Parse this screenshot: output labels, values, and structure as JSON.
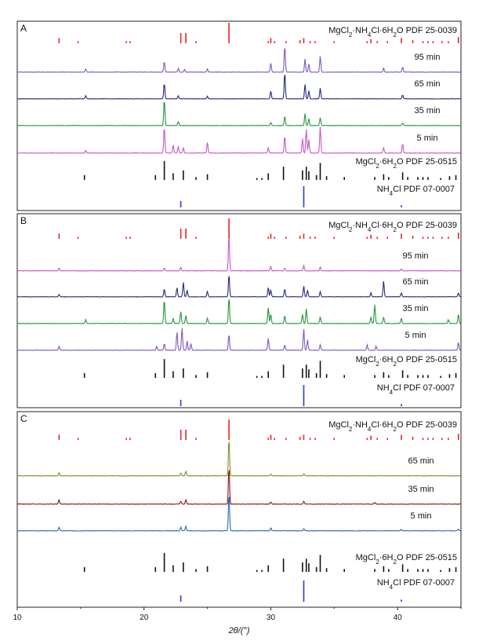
{
  "chart_data": {
    "type": "line",
    "xlabel": "2θ/(°)",
    "xlim": [
      10,
      45
    ],
    "x_ticks": [
      "10",
      "20",
      "30",
      "40"
    ],
    "x_tick_values": [
      10,
      20,
      30,
      40
    ],
    "colors": {
      "ref_mgnh4": "#e8232a",
      "ref_mgcl2": "#111111",
      "ref_nh4cl": "#2b3fc9",
      "purple": "#7e57c2",
      "navy": "#222a7a",
      "green": "#1e9a3c",
      "magenta": "#cc55c4",
      "olive": "#8a8a2a",
      "darkred": "#8b1414",
      "blue": "#2a6ab8"
    },
    "references": {
      "MgNH4": {
        "label": "MgCl2·NH4Cl·6H2O  PDF 25-0039",
        "peaks": [
          [
            13.3,
            0.25
          ],
          [
            14.8,
            0.1
          ],
          [
            18.6,
            0.1
          ],
          [
            18.9,
            0.1
          ],
          [
            22.9,
            0.5
          ],
          [
            23.3,
            0.5
          ],
          [
            24.1,
            0.1
          ],
          [
            26.7,
            1.0
          ],
          [
            29.8,
            0.1
          ],
          [
            30.0,
            0.25
          ],
          [
            30.3,
            0.1
          ],
          [
            31.2,
            0.1
          ],
          [
            32.3,
            0.15
          ],
          [
            32.6,
            0.25
          ],
          [
            33.1,
            0.1
          ],
          [
            33.5,
            0.1
          ],
          [
            35.0,
            0.1
          ],
          [
            37.6,
            0.1
          ],
          [
            37.9,
            0.2
          ],
          [
            38.4,
            0.1
          ],
          [
            39.2,
            0.1
          ],
          [
            40.3,
            0.25
          ],
          [
            41.2,
            0.15
          ],
          [
            42.0,
            0.1
          ],
          [
            42.4,
            0.1
          ],
          [
            42.8,
            0.1
          ],
          [
            43.5,
            0.1
          ],
          [
            44.0,
            0.1
          ],
          [
            44.8,
            0.3
          ]
        ]
      },
      "MgCl2": {
        "label": "MgCl2·6H2O  PDF 25-0515",
        "peaks": [
          [
            15.3,
            0.25
          ],
          [
            20.9,
            0.25
          ],
          [
            21.6,
            1.0
          ],
          [
            22.3,
            0.35
          ],
          [
            23.1,
            0.5
          ],
          [
            24.1,
            0.15
          ],
          [
            25.0,
            0.3
          ],
          [
            28.9,
            0.1
          ],
          [
            29.3,
            0.1
          ],
          [
            29.8,
            0.35
          ],
          [
            31.0,
            0.7
          ],
          [
            32.5,
            0.5
          ],
          [
            32.8,
            0.7
          ],
          [
            33.0,
            0.45
          ],
          [
            33.6,
            0.25
          ],
          [
            33.9,
            0.9
          ],
          [
            34.4,
            0.2
          ],
          [
            35.8,
            0.15
          ],
          [
            38.2,
            0.15
          ],
          [
            38.9,
            0.3
          ],
          [
            39.3,
            0.15
          ],
          [
            40.4,
            0.4
          ],
          [
            40.8,
            0.15
          ],
          [
            41.6,
            0.15
          ],
          [
            42.0,
            0.15
          ],
          [
            42.4,
            0.15
          ],
          [
            43.4,
            0.1
          ],
          [
            44.1,
            0.2
          ],
          [
            44.6,
            0.25
          ]
        ]
      },
      "NH4Cl": {
        "label": "NH4Cl  PDF 07-0007",
        "peaks": [
          [
            22.9,
            0.3
          ],
          [
            32.6,
            1.0
          ],
          [
            40.3,
            0.1
          ]
        ]
      }
    },
    "panels": [
      {
        "letter": "A",
        "patterns": [
          {
            "label": "95 min",
            "color": "purple",
            "peaks": [
              [
                15.4,
                0.12
              ],
              [
                21.6,
                0.4
              ],
              [
                22.7,
                0.15
              ],
              [
                23.2,
                0.1
              ],
              [
                25.0,
                0.12
              ],
              [
                30.0,
                0.35
              ],
              [
                31.1,
                1.0
              ],
              [
                32.7,
                0.5
              ],
              [
                33.0,
                0.3
              ],
              [
                33.9,
                0.6
              ],
              [
                38.9,
                0.15
              ],
              [
                40.4,
                0.2
              ]
            ]
          },
          {
            "label": "65 min",
            "color": "navy",
            "peaks": [
              [
                15.4,
                0.12
              ],
              [
                21.6,
                0.6
              ],
              [
                22.7,
                0.12
              ],
              [
                25.0,
                0.1
              ],
              [
                30.0,
                0.3
              ],
              [
                31.1,
                1.0
              ],
              [
                32.7,
                0.55
              ],
              [
                33.0,
                0.3
              ],
              [
                33.9,
                0.4
              ],
              [
                40.4,
                0.15
              ]
            ]
          },
          {
            "label": "35 min",
            "color": "green",
            "peaks": [
              [
                21.6,
                1.0
              ],
              [
                22.7,
                0.15
              ],
              [
                30.0,
                0.12
              ],
              [
                31.1,
                0.35
              ],
              [
                32.7,
                0.45
              ],
              [
                33.0,
                0.25
              ],
              [
                33.9,
                0.3
              ],
              [
                40.4,
                0.1
              ]
            ]
          },
          {
            "label": "5 min",
            "color": "magenta",
            "peaks": [
              [
                15.4,
                0.1
              ],
              [
                21.6,
                1.0
              ],
              [
                22.3,
                0.3
              ],
              [
                22.7,
                0.25
              ],
              [
                23.1,
                0.2
              ],
              [
                25.0,
                0.4
              ],
              [
                29.8,
                0.2
              ],
              [
                31.1,
                0.65
              ],
              [
                32.5,
                0.55
              ],
              [
                32.8,
                0.9
              ],
              [
                33.0,
                0.5
              ],
              [
                33.9,
                1.0
              ],
              [
                38.9,
                0.2
              ],
              [
                40.4,
                0.35
              ]
            ]
          }
        ]
      },
      {
        "letter": "B",
        "patterns": [
          {
            "label": "95 min",
            "color": "magenta",
            "peaks": [
              [
                13.3,
                0.08
              ],
              [
                21.6,
                0.08
              ],
              [
                22.9,
                0.1
              ],
              [
                26.7,
                1.0
              ],
              [
                30.0,
                0.12
              ],
              [
                31.1,
                0.08
              ],
              [
                32.6,
                0.15
              ],
              [
                33.9,
                0.1
              ],
              [
                40.3,
                0.05
              ]
            ]
          },
          {
            "label": "65 min",
            "color": "navy",
            "peaks": [
              [
                13.3,
                0.08
              ],
              [
                21.6,
                0.3
              ],
              [
                22.6,
                0.35
              ],
              [
                23.1,
                0.55
              ],
              [
                23.4,
                0.25
              ],
              [
                25.0,
                0.2
              ],
              [
                26.7,
                0.85
              ],
              [
                29.8,
                0.35
              ],
              [
                30.0,
                0.25
              ],
              [
                31.1,
                0.3
              ],
              [
                32.6,
                0.4
              ],
              [
                32.9,
                0.25
              ],
              [
                33.9,
                0.2
              ],
              [
                37.9,
                0.15
              ],
              [
                38.9,
                0.6
              ],
              [
                40.3,
                0.15
              ],
              [
                44.8,
                0.15
              ]
            ]
          },
          {
            "label": "35 min",
            "color": "green",
            "peaks": [
              [
                15.4,
                0.15
              ],
              [
                21.6,
                0.9
              ],
              [
                22.3,
                0.2
              ],
              [
                22.9,
                0.45
              ],
              [
                23.3,
                0.3
              ],
              [
                25.0,
                0.2
              ],
              [
                26.7,
                1.0
              ],
              [
                29.8,
                0.6
              ],
              [
                30.0,
                0.35
              ],
              [
                31.1,
                0.3
              ],
              [
                32.5,
                0.35
              ],
              [
                32.8,
                0.55
              ],
              [
                33.9,
                0.25
              ],
              [
                37.9,
                0.25
              ],
              [
                38.2,
                0.7
              ],
              [
                38.9,
                0.25
              ],
              [
                40.3,
                0.2
              ],
              [
                44.0,
                0.15
              ],
              [
                44.8,
                0.35
              ]
            ]
          },
          {
            "label": "5 min",
            "color": "purple",
            "peaks": [
              [
                13.3,
                0.15
              ],
              [
                21.0,
                0.15
              ],
              [
                21.6,
                0.25
              ],
              [
                22.6,
                0.7
              ],
              [
                23.0,
                0.85
              ],
              [
                23.4,
                0.35
              ],
              [
                23.7,
                0.25
              ],
              [
                26.7,
                0.6
              ],
              [
                29.8,
                0.45
              ],
              [
                31.1,
                0.2
              ],
              [
                32.6,
                0.8
              ],
              [
                32.9,
                0.4
              ],
              [
                33.9,
                0.2
              ],
              [
                37.6,
                0.2
              ],
              [
                38.3,
                0.15
              ],
              [
                44.8,
                0.3
              ]
            ]
          }
        ]
      },
      {
        "letter": "C",
        "patterns": [
          {
            "label": "65 min",
            "color": "olive",
            "peaks": [
              [
                13.3,
                0.08
              ],
              [
                22.9,
                0.08
              ],
              [
                23.3,
                0.12
              ],
              [
                26.7,
                1.0
              ],
              [
                30.0,
                0.05
              ],
              [
                32.6,
                0.05
              ]
            ]
          },
          {
            "label": "35 min",
            "color": "darkred",
            "peaks": [
              [
                13.3,
                0.12
              ],
              [
                22.9,
                0.08
              ],
              [
                23.3,
                0.12
              ],
              [
                26.7,
                1.0
              ],
              [
                30.0,
                0.06
              ],
              [
                32.6,
                0.07
              ],
              [
                38.2,
                0.04
              ]
            ]
          },
          {
            "label": "5 min",
            "color": "blue",
            "peaks": [
              [
                13.3,
                0.1
              ],
              [
                22.9,
                0.1
              ],
              [
                23.3,
                0.12
              ],
              [
                26.7,
                1.0
              ],
              [
                30.0,
                0.08
              ],
              [
                32.6,
                0.06
              ],
              [
                40.3,
                0.04
              ],
              [
                44.8,
                0.04
              ]
            ]
          }
        ]
      }
    ]
  }
}
